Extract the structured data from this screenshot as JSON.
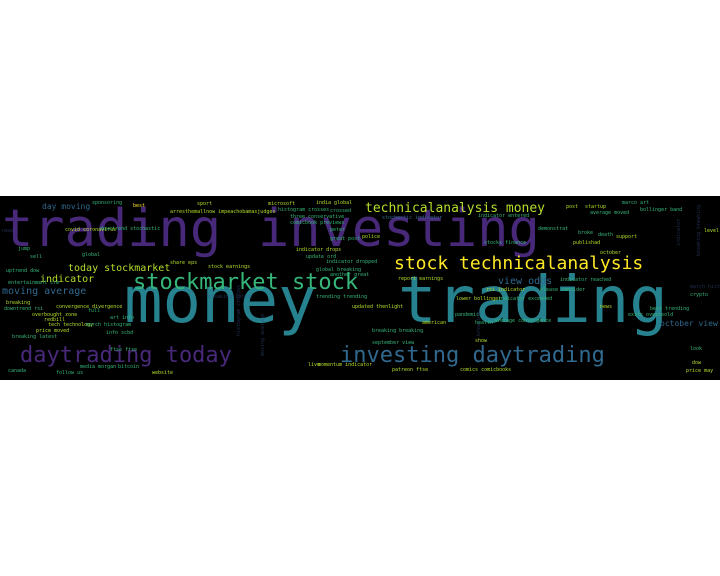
{
  "palette": {
    "purple": "#482878",
    "blue": "#31688e",
    "teal": "#26828e",
    "green": "#35b779",
    "lime": "#b5de2b",
    "yellow": "#fde725",
    "dark": "#3b528b"
  },
  "words": [
    {
      "text": "trading",
      "color": "purple"
    },
    {
      "text": "investing",
      "color": "purple"
    },
    {
      "text": "money",
      "color": "teal"
    },
    {
      "text": "trading",
      "color": "teal"
    },
    {
      "text": "stockmarket stock",
      "color": "green"
    },
    {
      "text": "stock technicalanalysis",
      "color": "yellow"
    },
    {
      "text": "technicalanalysis money",
      "color": "lime"
    },
    {
      "text": "daytrading today",
      "color": "purple"
    },
    {
      "text": "investing daytrading",
      "color": "blue"
    },
    {
      "text": "today stockmarket",
      "color": "lime"
    },
    {
      "text": "day moving",
      "color": "blue"
    },
    {
      "text": "moving average",
      "color": "blue"
    },
    {
      "text": "indicator",
      "color": "lime"
    },
    {
      "text": "view odds",
      "color": "blue"
    },
    {
      "text": "october view",
      "color": "blue"
    },
    {
      "text": "covid coronavirus",
      "color": "lime"
    },
    {
      "text": "arresthemallnow impeachobamasjudges",
      "color": "lime"
    },
    {
      "text": "histogram crosses",
      "color": "green"
    },
    {
      "text": "stochastic indicator",
      "color": "blue"
    },
    {
      "text": "post",
      "color": "lime"
    },
    {
      "text": "startup",
      "color": "lime"
    },
    {
      "text": "bollinger band",
      "color": "green"
    },
    {
      "text": "average moved",
      "color": "green"
    },
    {
      "text": "india global",
      "color": "lime"
    },
    {
      "text": "best",
      "color": "yellow"
    },
    {
      "text": "sport",
      "color": "lime"
    },
    {
      "text": "microsoft",
      "color": "lime"
    },
    {
      "text": "publishad",
      "color": "lime"
    },
    {
      "text": "support",
      "color": "lime"
    },
    {
      "text": "convergence divergence",
      "color": "lime"
    },
    {
      "text": "tech technology",
      "color": "lime"
    },
    {
      "text": "price moved",
      "color": "lime"
    },
    {
      "text": "lower bollinger",
      "color": "lime"
    },
    {
      "text": "indicator exceeded",
      "color": "green"
    },
    {
      "text": "rsi indicator",
      "color": "lime"
    },
    {
      "text": "report earnings",
      "color": "lime"
    },
    {
      "text": "indicator drops",
      "color": "lime"
    },
    {
      "text": "updated thenlight",
      "color": "lime"
    },
    {
      "text": "momentum indicator",
      "color": "lime"
    },
    {
      "text": "patreon ftse",
      "color": "lime"
    },
    {
      "text": "comics comicbooks",
      "color": "lime"
    },
    {
      "text": "news",
      "color": "lime"
    },
    {
      "text": "breaking",
      "color": "lime"
    },
    {
      "text": "overbought zone",
      "color": "lime"
    },
    {
      "text": "redbill",
      "color": "lime"
    },
    {
      "text": "share eps",
      "color": "lime"
    },
    {
      "text": "stock earnings",
      "color": "lime"
    },
    {
      "text": "dow",
      "color": "lime"
    },
    {
      "text": "price may",
      "color": "lime"
    },
    {
      "text": "look",
      "color": "green"
    },
    {
      "text": "exits overssold",
      "color": "green"
    },
    {
      "text": "best trending",
      "color": "green"
    },
    {
      "text": "crypto",
      "color": "green"
    },
    {
      "text": "level",
      "color": "lime"
    },
    {
      "text": "october",
      "color": "lime"
    },
    {
      "text": "police",
      "color": "lime"
    },
    {
      "text": "live",
      "color": "lime"
    },
    {
      "text": "pandemic",
      "color": "green"
    },
    {
      "text": "health",
      "color": "green"
    },
    {
      "text": "american",
      "color": "lime"
    },
    {
      "text": "show",
      "color": "lime"
    },
    {
      "text": "website",
      "color": "lime"
    },
    {
      "text": "canada",
      "color": "green"
    },
    {
      "text": "follow us",
      "color": "green"
    },
    {
      "text": "breaking latest",
      "color": "green"
    },
    {
      "text": "downtrend stochastic",
      "color": "green"
    },
    {
      "text": "downtrend rsi",
      "color": "green"
    },
    {
      "text": "entertainment crm",
      "color": "green"
    },
    {
      "text": "uptrend dow",
      "color": "green"
    },
    {
      "text": "info scbd",
      "color": "green"
    },
    {
      "text": "art info",
      "color": "green"
    },
    {
      "text": "please consider",
      "color": "green"
    },
    {
      "text": "indicator reached",
      "color": "green"
    },
    {
      "text": "average convergence",
      "color": "green"
    },
    {
      "text": "indicator entered",
      "color": "green"
    },
    {
      "text": "demonstrat",
      "color": "green"
    },
    {
      "text": "broke",
      "color": "green"
    },
    {
      "text": "death",
      "color": "green"
    },
    {
      "text": "stocks finance",
      "color": "green"
    },
    {
      "text": "trending trending",
      "color": "green"
    },
    {
      "text": "breaking breaking",
      "color": "green"
    },
    {
      "text": "september view",
      "color": "green"
    },
    {
      "text": "comicbook previews",
      "color": "green"
    },
    {
      "text": "three conservative",
      "color": "green"
    },
    {
      "text": "crossed",
      "color": "green"
    },
    {
      "text": "global breaking",
      "color": "green"
    },
    {
      "text": "march histogram",
      "color": "green"
    },
    {
      "text": "bitcoin",
      "color": "green"
    },
    {
      "text": "media morgan",
      "color": "green"
    },
    {
      "text": "full",
      "color": "green"
    },
    {
      "text": "sell",
      "color": "green"
    },
    {
      "text": "jump",
      "color": "green"
    },
    {
      "text": "ftse ftse",
      "color": "green"
    },
    {
      "text": "indicator dropped",
      "color": "green"
    },
    {
      "text": "update ord",
      "color": "green"
    },
    {
      "text": "another great",
      "color": "green"
    },
    {
      "text": "peter",
      "color": "green"
    },
    {
      "text": "great post",
      "color": "green"
    },
    {
      "text": "global",
      "color": "green"
    },
    {
      "text": "marco art",
      "color": "green"
    },
    {
      "text": "sponsoring",
      "color": "green"
    }
  ]
}
